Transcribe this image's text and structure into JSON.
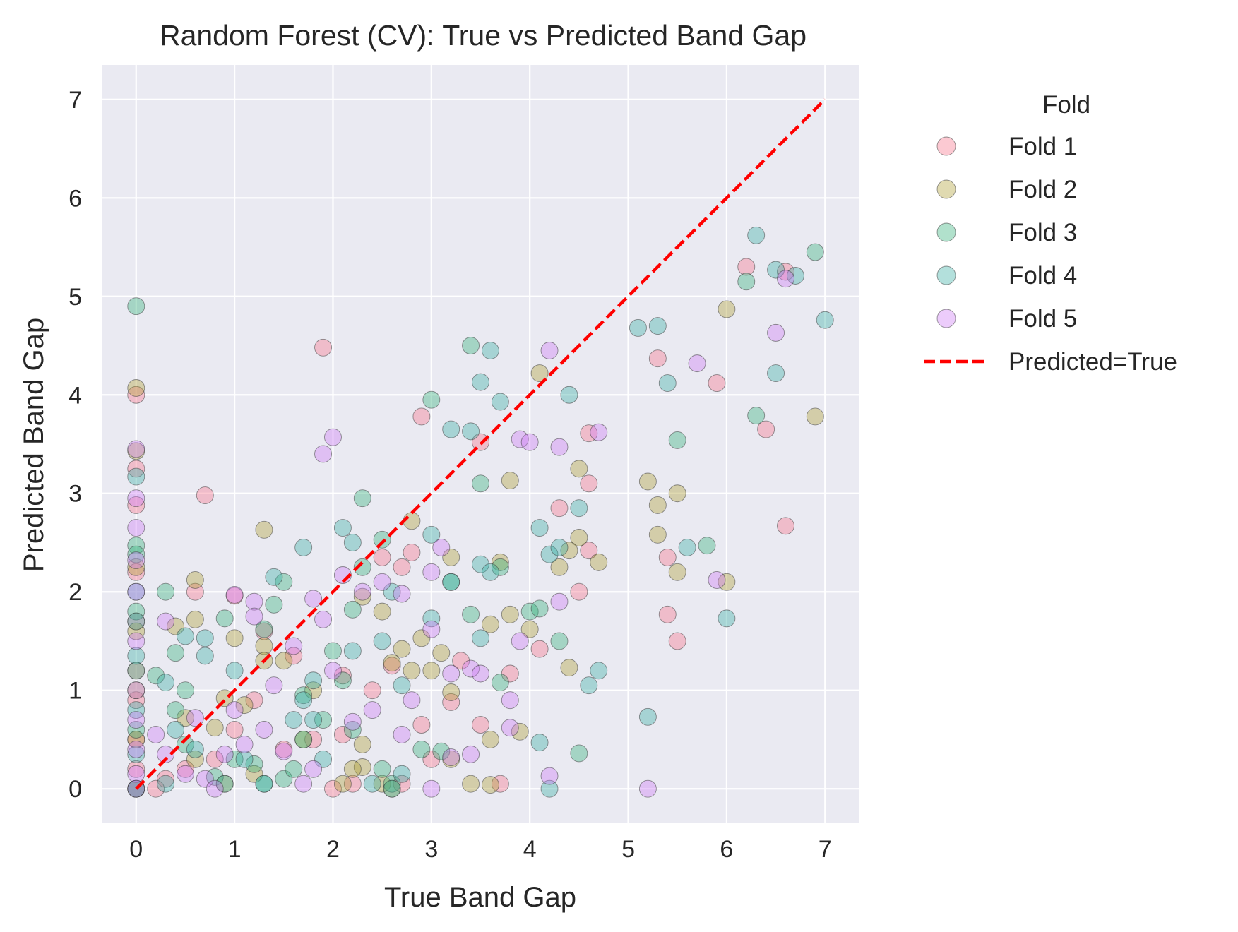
{
  "chart_data": {
    "type": "scatter",
    "title": "Random Forest (CV): True vs Predicted Band Gap",
    "xlabel": "True Band Gap",
    "ylabel": "Predicted Band Gap",
    "xlim": [
      -0.35,
      7.35
    ],
    "ylim": [
      -0.35,
      7.35
    ],
    "xticks": [
      "0",
      "1",
      "2",
      "3",
      "4",
      "5",
      "6",
      "7"
    ],
    "yticks": [
      "0",
      "1",
      "2",
      "3",
      "4",
      "5",
      "6",
      "7"
    ],
    "grid": true,
    "legend": {
      "title": "Fold",
      "placement": "outside-right"
    },
    "reference_line": {
      "name": "Predicted=True",
      "x": [
        0,
        7
      ],
      "y": [
        0,
        7
      ],
      "color": "#ff0000",
      "style": "dashed"
    },
    "series": [
      {
        "name": "Fold 1",
        "color": "#f77189",
        "points": [
          [
            0,
            4.0
          ],
          [
            0,
            3.25
          ],
          [
            0,
            2.88
          ],
          [
            0,
            2.2
          ],
          [
            0,
            1.7
          ],
          [
            0,
            1.2
          ],
          [
            0,
            0.9
          ],
          [
            0,
            0.5
          ],
          [
            0,
            0.2
          ],
          [
            0,
            0
          ],
          [
            0.7,
            2.98
          ],
          [
            0.6,
            2.0
          ],
          [
            1.0,
            1.96
          ],
          [
            1.9,
            4.48
          ],
          [
            2.9,
            3.78
          ],
          [
            3.5,
            3.52
          ],
          [
            4.6,
            3.61
          ],
          [
            4.6,
            3.1
          ],
          [
            4.3,
            2.85
          ],
          [
            4.5,
            2.0
          ],
          [
            4.6,
            2.42
          ],
          [
            5.3,
            4.37
          ],
          [
            5.4,
            2.35
          ],
          [
            5.9,
            4.12
          ],
          [
            6.2,
            5.3
          ],
          [
            6.6,
            5.25
          ],
          [
            6.4,
            3.65
          ],
          [
            6.6,
            2.67
          ],
          [
            5.4,
            1.77
          ],
          [
            5.5,
            1.5
          ],
          [
            4.1,
            1.42
          ],
          [
            3.8,
            1.17
          ],
          [
            2.8,
            2.4
          ],
          [
            2.7,
            2.25
          ],
          [
            2.5,
            2.35
          ],
          [
            2.6,
            1.25
          ],
          [
            3.3,
            1.3
          ],
          [
            3.2,
            0.88
          ],
          [
            3.0,
            0.3
          ],
          [
            3.5,
            0.65
          ],
          [
            3.7,
            0.05
          ],
          [
            2.9,
            0.65
          ],
          [
            2.7,
            0.05
          ],
          [
            2.2,
            0.05
          ],
          [
            2.0,
            0
          ],
          [
            2.1,
            0.55
          ],
          [
            1.8,
            0.5
          ],
          [
            1.5,
            0.4
          ],
          [
            1.2,
            0.9
          ],
          [
            1.0,
            0.6
          ],
          [
            0.8,
            0.3
          ],
          [
            0.5,
            0.2
          ],
          [
            0.3,
            0.1
          ],
          [
            0.2,
            0
          ],
          [
            1.6,
            1.35
          ],
          [
            2.1,
            1.15
          ],
          [
            2.4,
            1.0
          ],
          [
            1.3,
            1.6
          ]
        ]
      },
      {
        "name": "Fold 2",
        "color": "#ae9d31",
        "points": [
          [
            0,
            4.07
          ],
          [
            0,
            3.43
          ],
          [
            0,
            2.25
          ],
          [
            0,
            1.6
          ],
          [
            0,
            1.0
          ],
          [
            0,
            0.5
          ],
          [
            0,
            0
          ],
          [
            0.6,
            2.12
          ],
          [
            0.6,
            1.72
          ],
          [
            1.0,
            1.53
          ],
          [
            1.3,
            2.63
          ],
          [
            2.8,
            2.72
          ],
          [
            3.2,
            2.35
          ],
          [
            3.7,
            2.3
          ],
          [
            3.8,
            3.13
          ],
          [
            4.1,
            4.22
          ],
          [
            4.5,
            3.25
          ],
          [
            4.5,
            2.55
          ],
          [
            4.3,
            2.25
          ],
          [
            4.4,
            2.42
          ],
          [
            4.7,
            2.3
          ],
          [
            4.4,
            1.23
          ],
          [
            5.2,
            3.12
          ],
          [
            5.3,
            2.88
          ],
          [
            5.3,
            2.58
          ],
          [
            5.5,
            3.0
          ],
          [
            5.5,
            2.2
          ],
          [
            6.0,
            4.87
          ],
          [
            6.9,
            3.78
          ],
          [
            6.0,
            2.1
          ],
          [
            3.8,
            1.77
          ],
          [
            4.0,
            1.62
          ],
          [
            3.6,
            1.67
          ],
          [
            3.6,
            0.5
          ],
          [
            3.9,
            0.58
          ],
          [
            3.4,
            0.05
          ],
          [
            3.6,
            0.04
          ],
          [
            3.2,
            0.3
          ],
          [
            3.2,
            0.98
          ],
          [
            3.1,
            1.38
          ],
          [
            3.0,
            1.2
          ],
          [
            2.9,
            1.53
          ],
          [
            2.8,
            1.2
          ],
          [
            2.7,
            1.42
          ],
          [
            2.6,
            1.28
          ],
          [
            2.5,
            1.8
          ],
          [
            2.3,
            1.95
          ],
          [
            2.3,
            0.45
          ],
          [
            2.3,
            0.22
          ],
          [
            2.2,
            0.2
          ],
          [
            2.1,
            0.05
          ],
          [
            2.5,
            0.05
          ],
          [
            2.6,
            0
          ],
          [
            1.8,
            1.0
          ],
          [
            1.5,
            1.3
          ],
          [
            1.3,
            1.45
          ],
          [
            1.1,
            0.85
          ],
          [
            0.9,
            0.92
          ],
          [
            0.8,
            0.62
          ],
          [
            0.5,
            0.72
          ],
          [
            0.6,
            0.3
          ],
          [
            0.9,
            0.05
          ],
          [
            1.2,
            0.15
          ],
          [
            1.7,
            0.5
          ],
          [
            0.4,
            1.65
          ],
          [
            1.3,
            1.3
          ]
        ]
      },
      {
        "name": "Fold 3",
        "color": "#33b07a",
        "points": [
          [
            0,
            4.9
          ],
          [
            0,
            2.47
          ],
          [
            0,
            2.38
          ],
          [
            0,
            1.8
          ],
          [
            0,
            1.2
          ],
          [
            0,
            0.6
          ],
          [
            0,
            0
          ],
          [
            0.3,
            2.0
          ],
          [
            0.9,
            1.73
          ],
          [
            0.4,
            1.38
          ],
          [
            1.3,
            1.62
          ],
          [
            1.5,
            2.1
          ],
          [
            1.4,
            1.87
          ],
          [
            2.3,
            2.95
          ],
          [
            2.5,
            2.53
          ],
          [
            2.3,
            2.25
          ],
          [
            3.0,
            3.95
          ],
          [
            3.4,
            4.5
          ],
          [
            3.5,
            3.1
          ],
          [
            3.4,
            1.77
          ],
          [
            3.2,
            2.1
          ],
          [
            3.7,
            2.25
          ],
          [
            3.7,
            1.08
          ],
          [
            4.0,
            1.8
          ],
          [
            4.1,
            1.83
          ],
          [
            4.3,
            1.5
          ],
          [
            4.5,
            0.36
          ],
          [
            3.1,
            0.38
          ],
          [
            5.5,
            3.54
          ],
          [
            5.8,
            2.47
          ],
          [
            6.3,
            3.79
          ],
          [
            6.2,
            5.15
          ],
          [
            6.9,
            5.45
          ],
          [
            2.9,
            0.4
          ],
          [
            2.6,
            0.05
          ],
          [
            2.5,
            0.2
          ],
          [
            2.2,
            0.6
          ],
          [
            2.0,
            1.4
          ],
          [
            2.2,
            1.82
          ],
          [
            1.9,
            0.7
          ],
          [
            1.7,
            0.5
          ],
          [
            1.5,
            0.1
          ],
          [
            1.2,
            0.25
          ],
          [
            1.0,
            0.3
          ],
          [
            0.8,
            0.12
          ],
          [
            0.5,
            0.45
          ],
          [
            0.4,
            0.8
          ],
          [
            0.5,
            1.0
          ],
          [
            0.2,
            1.15
          ],
          [
            1.7,
            0.95
          ],
          [
            2.1,
            1.1
          ],
          [
            1.6,
            0.2
          ],
          [
            1.3,
            0.05
          ]
        ]
      },
      {
        "name": "Fold 4",
        "color": "#36ada4",
        "points": [
          [
            0,
            3.17
          ],
          [
            0,
            2.0
          ],
          [
            0,
            1.7
          ],
          [
            0,
            1.35
          ],
          [
            0,
            0.8
          ],
          [
            0,
            0.35
          ],
          [
            0,
            0
          ],
          [
            0.5,
            1.55
          ],
          [
            0.7,
            1.53
          ],
          [
            0.7,
            1.35
          ],
          [
            1.0,
            1.2
          ],
          [
            0.3,
            1.08
          ],
          [
            1.4,
            2.15
          ],
          [
            1.7,
            2.45
          ],
          [
            2.1,
            2.65
          ],
          [
            2.2,
            2.5
          ],
          [
            3.0,
            2.58
          ],
          [
            3.2,
            2.1
          ],
          [
            3.2,
            3.65
          ],
          [
            3.4,
            3.63
          ],
          [
            3.5,
            4.13
          ],
          [
            3.6,
            4.45
          ],
          [
            3.7,
            3.93
          ],
          [
            4.4,
            4.0
          ],
          [
            4.5,
            2.85
          ],
          [
            4.1,
            2.65
          ],
          [
            4.2,
            2.38
          ],
          [
            4.3,
            2.45
          ],
          [
            3.5,
            2.28
          ],
          [
            3.6,
            2.2
          ],
          [
            3.5,
            1.53
          ],
          [
            3.0,
            1.73
          ],
          [
            2.6,
            2.0
          ],
          [
            2.5,
            1.5
          ],
          [
            4.6,
            1.05
          ],
          [
            4.7,
            1.2
          ],
          [
            4.1,
            0.47
          ],
          [
            4.2,
            0
          ],
          [
            5.1,
            4.68
          ],
          [
            5.3,
            4.7
          ],
          [
            5.4,
            4.12
          ],
          [
            5.6,
            2.45
          ],
          [
            6.0,
            1.73
          ],
          [
            5.2,
            0.73
          ],
          [
            6.3,
            5.62
          ],
          [
            6.5,
            5.27
          ],
          [
            6.7,
            5.21
          ],
          [
            6.5,
            4.22
          ],
          [
            7.0,
            4.76
          ],
          [
            2.6,
            0
          ],
          [
            2.7,
            0.15
          ],
          [
            2.4,
            0.05
          ],
          [
            1.9,
            0.3
          ],
          [
            1.6,
            0.7
          ],
          [
            1.3,
            0.05
          ],
          [
            1.1,
            0.3
          ],
          [
            0.9,
            0.05
          ],
          [
            0.6,
            0.4
          ],
          [
            0.4,
            0.6
          ],
          [
            0.3,
            0.05
          ],
          [
            1.8,
            1.1
          ],
          [
            1.7,
            0.9
          ],
          [
            1.8,
            0.7
          ],
          [
            2.2,
            1.4
          ],
          [
            2.7,
            1.05
          ]
        ]
      },
      {
        "name": "Fold 5",
        "color": "#cc7af4",
        "points": [
          [
            0,
            3.45
          ],
          [
            0,
            2.95
          ],
          [
            0,
            2.65
          ],
          [
            0,
            2.32
          ],
          [
            0,
            2.0
          ],
          [
            0,
            1.5
          ],
          [
            0,
            1.0
          ],
          [
            0,
            0.7
          ],
          [
            0,
            0.4
          ],
          [
            0,
            0.15
          ],
          [
            0,
            0
          ],
          [
            0.3,
            1.7
          ],
          [
            1.0,
            1.97
          ],
          [
            1.2,
            1.9
          ],
          [
            1.8,
            1.93
          ],
          [
            1.9,
            1.72
          ],
          [
            1.9,
            3.4
          ],
          [
            2.0,
            3.57
          ],
          [
            2.1,
            2.17
          ],
          [
            2.3,
            2.0
          ],
          [
            2.7,
            1.98
          ],
          [
            3.0,
            2.2
          ],
          [
            3.1,
            2.45
          ],
          [
            3.0,
            1.62
          ],
          [
            3.2,
            1.17
          ],
          [
            3.4,
            1.22
          ],
          [
            3.5,
            1.17
          ],
          [
            3.8,
            0.9
          ],
          [
            3.8,
            0.62
          ],
          [
            3.9,
            1.5
          ],
          [
            3.9,
            3.55
          ],
          [
            4.0,
            3.52
          ],
          [
            4.2,
            4.45
          ],
          [
            4.3,
            3.47
          ],
          [
            4.3,
            1.9
          ],
          [
            4.7,
            3.62
          ],
          [
            4.2,
            0.13
          ],
          [
            3.4,
            0.35
          ],
          [
            3.2,
            0.32
          ],
          [
            3.0,
            0
          ],
          [
            2.7,
            0.55
          ],
          [
            2.4,
            0.8
          ],
          [
            2.8,
            0.9
          ],
          [
            5.2,
            0
          ],
          [
            5.7,
            4.32
          ],
          [
            5.9,
            2.12
          ],
          [
            6.5,
            4.63
          ],
          [
            6.6,
            5.18
          ],
          [
            2.5,
            2.1
          ],
          [
            2.2,
            0.68
          ],
          [
            1.8,
            0.2
          ],
          [
            1.7,
            0.05
          ],
          [
            1.5,
            0.38
          ],
          [
            1.3,
            0.6
          ],
          [
            1.1,
            0.45
          ],
          [
            0.9,
            0.35
          ],
          [
            0.7,
            0.1
          ],
          [
            0.5,
            0.15
          ],
          [
            0.3,
            0.35
          ],
          [
            0.2,
            0.55
          ],
          [
            0.6,
            0.72
          ],
          [
            1.4,
            1.05
          ],
          [
            1.6,
            1.45
          ],
          [
            1.2,
            1.75
          ],
          [
            2.0,
            1.2
          ],
          [
            1.0,
            0.8
          ],
          [
            0.8,
            0
          ]
        ]
      }
    ]
  }
}
